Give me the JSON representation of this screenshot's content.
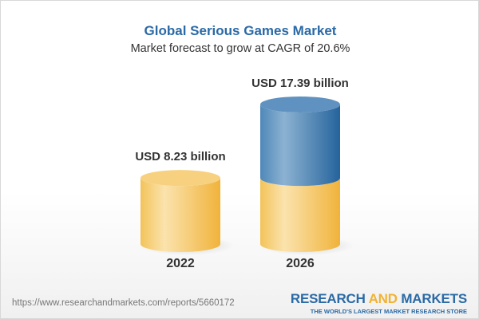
{
  "title": "Global Serious Games Market",
  "subtitle": "Market forecast to grow at CAGR of 20.6%",
  "chart_data": {
    "type": "bar",
    "style": "3d-cylinder",
    "categories": [
      "2022",
      "2026"
    ],
    "values": [
      8.23,
      17.39
    ],
    "data_labels": [
      "USD 8.23 billion",
      "USD 17.39 billion"
    ],
    "unit": "USD billion",
    "colors": {
      "base": "#f5c55a",
      "growth": "#3e78ad"
    }
  },
  "footer": {
    "url": "https://www.researchandmarkets.com/reports/5660172",
    "logo_part1": "RESEARCH ",
    "logo_part2": "AND",
    "logo_part3": " MARKETS",
    "tagline": "THE WORLD'S LARGEST MARKET RESEARCH STORE"
  }
}
